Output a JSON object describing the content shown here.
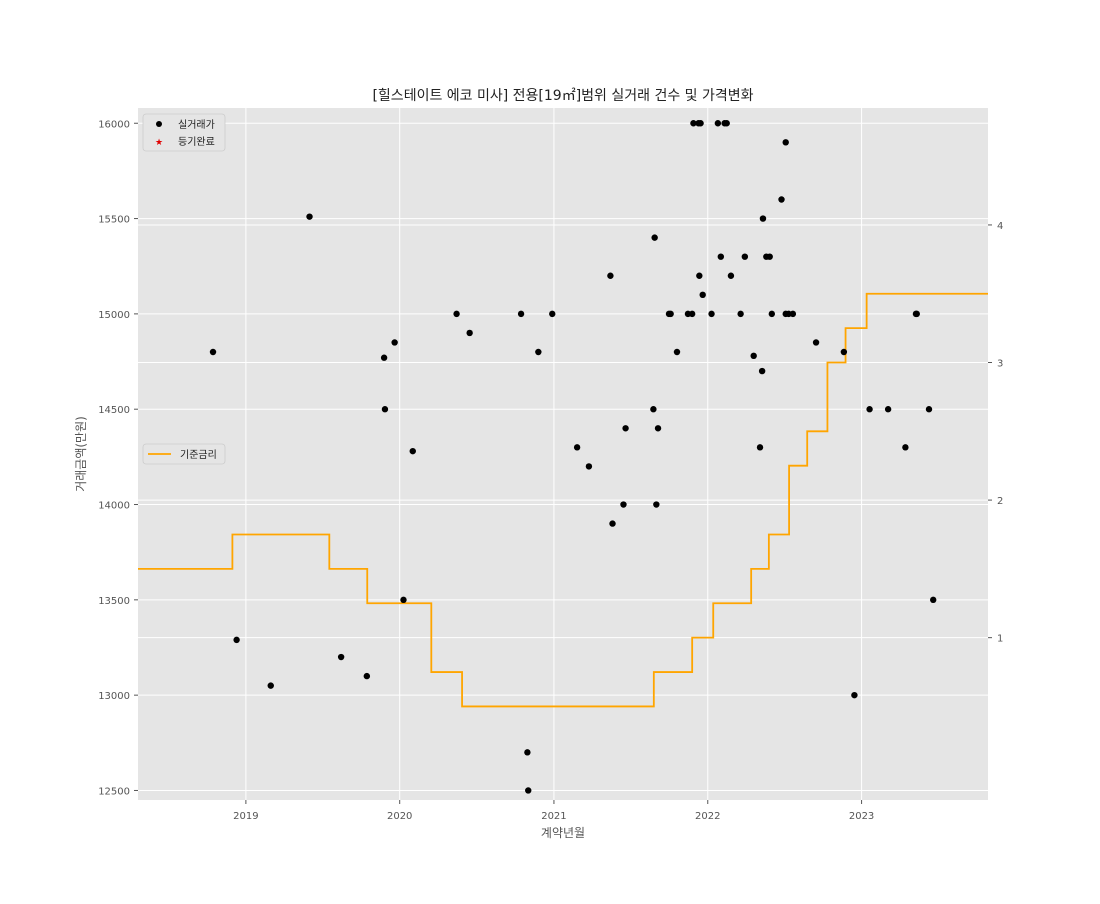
{
  "chart_data": {
    "type": "scatter",
    "title": "[힐스테이트 에코 미사] 전용[19㎡]범위 실거래 건수 및 가격변화",
    "xlabel": "계약년월",
    "ylabel": "거래금액(만원)",
    "x_tick_labels": [
      "2019",
      "2020",
      "2021",
      "2022",
      "2023"
    ],
    "y_tick_labels": [
      "12500",
      "13000",
      "13500",
      "14000",
      "14500",
      "15000",
      "15500",
      "16000"
    ],
    "y2_tick_labels": [
      "1",
      "2",
      "3",
      "4"
    ],
    "xlim": [
      "2018-04-20",
      "2023-10-28"
    ],
    "ylim": [
      12450,
      16080
    ],
    "y2lim": [
      -0.18,
      4.85
    ],
    "grid": true,
    "legend_top": {
      "placement": "upper-left",
      "entries": [
        "실거래가",
        "등기완료"
      ]
    },
    "legend_mid": {
      "placement": "center-left",
      "entries": [
        "기준금리"
      ]
    },
    "colors": {
      "background": "#e5e5e5",
      "grid": "#ffffff",
      "trade_marker": "#000000",
      "registered_marker": "#e00000",
      "rate_line": "#ffa500",
      "axis_text": "#555555"
    },
    "series": [
      {
        "name": "실거래가",
        "kind": "scatter",
        "points": [
          [
            "2018-10-15",
            14800
          ],
          [
            "2018-12-10",
            13290
          ],
          [
            "2019-03-01",
            13050
          ],
          [
            "2019-06-01",
            15510
          ],
          [
            "2019-08-15",
            13200
          ],
          [
            "2019-10-15",
            13100
          ],
          [
            "2019-11-25",
            14770
          ],
          [
            "2019-11-27",
            14500
          ],
          [
            "2019-12-20",
            14850
          ],
          [
            "2020-01-10",
            13500
          ],
          [
            "2020-02-01",
            14280
          ],
          [
            "2020-05-15",
            15000
          ],
          [
            "2020-06-15",
            14900
          ],
          [
            "2020-10-15",
            15000
          ],
          [
            "2020-10-30",
            12700
          ],
          [
            "2020-11-01",
            12500
          ],
          [
            "2020-11-25",
            14800
          ],
          [
            "2020-12-28",
            15000
          ],
          [
            "2021-02-25",
            14300
          ],
          [
            "2021-03-25",
            14200
          ],
          [
            "2021-05-15",
            15200
          ],
          [
            "2021-05-20",
            13900
          ],
          [
            "2021-06-15",
            14000
          ],
          [
            "2021-06-20",
            14400
          ],
          [
            "2021-08-25",
            14500
          ],
          [
            "2021-08-28",
            15400
          ],
          [
            "2021-09-01",
            14000
          ],
          [
            "2021-09-05",
            14400
          ],
          [
            "2021-10-01",
            15000
          ],
          [
            "2021-10-05",
            15000
          ],
          [
            "2021-10-20",
            14800
          ],
          [
            "2021-11-15",
            15000
          ],
          [
            "2021-11-25",
            15000
          ],
          [
            "2021-11-28",
            16000
          ],
          [
            "2021-12-10",
            16000
          ],
          [
            "2021-12-12",
            15200
          ],
          [
            "2021-12-15",
            16000
          ],
          [
            "2021-12-20",
            15100
          ],
          [
            "2022-01-10",
            15000
          ],
          [
            "2022-01-25",
            16000
          ],
          [
            "2022-02-01",
            15300
          ],
          [
            "2022-02-10",
            16000
          ],
          [
            "2022-02-15",
            16000
          ],
          [
            "2022-02-25",
            15200
          ],
          [
            "2022-03-20",
            15000
          ],
          [
            "2022-03-30",
            15300
          ],
          [
            "2022-04-20",
            14780
          ],
          [
            "2022-05-05",
            14300
          ],
          [
            "2022-05-10",
            14700
          ],
          [
            "2022-05-12",
            15500
          ],
          [
            "2022-05-20",
            15300
          ],
          [
            "2022-05-28",
            15300
          ],
          [
            "2022-06-02",
            15000
          ],
          [
            "2022-06-25",
            15600
          ],
          [
            "2022-07-05",
            15900
          ],
          [
            "2022-07-05",
            15000
          ],
          [
            "2022-07-12",
            15000
          ],
          [
            "2022-07-22",
            15000
          ],
          [
            "2022-09-15",
            14850
          ],
          [
            "2022-11-20",
            14800
          ],
          [
            "2022-12-15",
            13000
          ],
          [
            "2023-01-20",
            14500
          ],
          [
            "2023-03-05",
            14500
          ],
          [
            "2023-04-15",
            14300
          ],
          [
            "2023-05-10",
            15000
          ],
          [
            "2023-05-12",
            15000
          ],
          [
            "2023-06-10",
            14500
          ],
          [
            "2023-06-20",
            13500
          ]
        ]
      },
      {
        "name": "등기완료",
        "kind": "scatter",
        "points": []
      },
      {
        "name": "기준금리",
        "kind": "step",
        "axis": "right",
        "points": [
          [
            "2018-04-20",
            1.5
          ],
          [
            "2018-11-30",
            1.75
          ],
          [
            "2019-07-18",
            1.5
          ],
          [
            "2019-10-16",
            1.25
          ],
          [
            "2020-03-16",
            0.75
          ],
          [
            "2020-05-28",
            0.5
          ],
          [
            "2021-08-26",
            0.75
          ],
          [
            "2021-11-25",
            1.0
          ],
          [
            "2022-01-14",
            1.25
          ],
          [
            "2022-04-14",
            1.5
          ],
          [
            "2022-05-26",
            1.75
          ],
          [
            "2022-07-13",
            2.25
          ],
          [
            "2022-08-25",
            2.5
          ],
          [
            "2022-10-12",
            3.0
          ],
          [
            "2022-11-24",
            3.25
          ],
          [
            "2023-01-13",
            3.5
          ],
          [
            "2023-10-28",
            3.5
          ]
        ]
      }
    ]
  }
}
